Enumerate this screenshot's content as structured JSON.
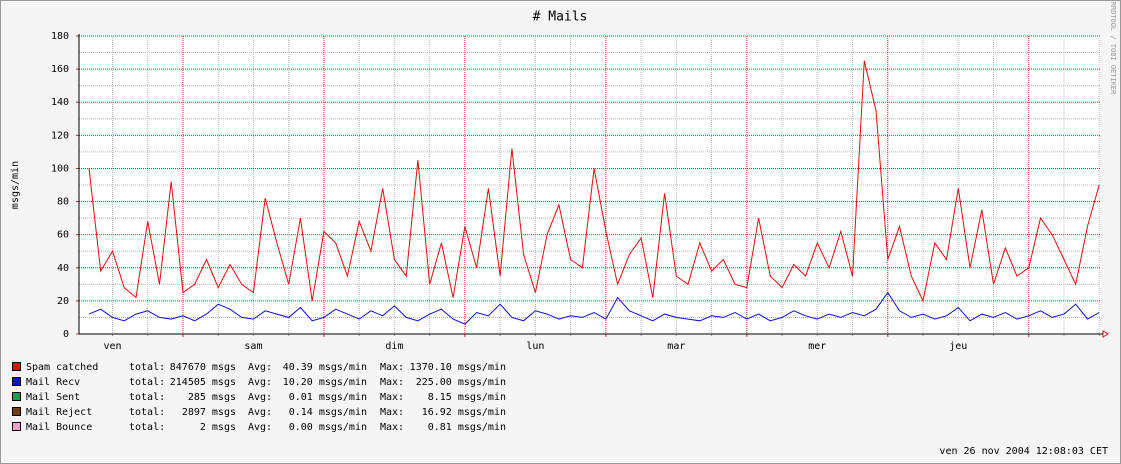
{
  "chart_data": {
    "type": "line",
    "title": "# Mails",
    "y_label": "msgs/min",
    "watermark": "RRDTOOL / TOBI OETIKER",
    "timestamp": "ven 26 nov 2004 12:08:03 CET",
    "xlim": [
      6.3,
      180.3
    ],
    "ylim": [
      0,
      180
    ],
    "yticks": [
      0,
      20,
      40,
      60,
      80,
      100,
      120,
      140,
      160,
      180
    ],
    "xticks": [
      {
        "value": 12,
        "label": "ven"
      },
      {
        "value": 36,
        "label": "sam"
      },
      {
        "value": 60,
        "label": "dim"
      },
      {
        "value": 84,
        "label": "lun"
      },
      {
        "value": 108,
        "label": "mar"
      },
      {
        "value": 132,
        "label": "mer"
      },
      {
        "value": 156,
        "label": "jeu"
      }
    ],
    "grid": true,
    "legend_labels": {
      "total": "total:",
      "avg": "Avg:",
      "max": "Max:"
    },
    "x": [
      8,
      10,
      12,
      14,
      16,
      18,
      20,
      22,
      24,
      26,
      28,
      30,
      32,
      34,
      36,
      38,
      40,
      42,
      44,
      46,
      48,
      50,
      52,
      54,
      56,
      58,
      60,
      62,
      64,
      66,
      68,
      70,
      72,
      74,
      76,
      78,
      80,
      82,
      84,
      86,
      88,
      90,
      92,
      94,
      96,
      98,
      100,
      102,
      104,
      106,
      108,
      110,
      112,
      114,
      116,
      118,
      120,
      122,
      124,
      126,
      128,
      130,
      132,
      134,
      136,
      138,
      140,
      142,
      144,
      146,
      148,
      150,
      152,
      154,
      156,
      158,
      160,
      162,
      164,
      166,
      168,
      170,
      172,
      174,
      176,
      178,
      180
    ],
    "series": [
      {
        "name": "Spam catched",
        "color": "#e01010",
        "total": "847670 msgs",
        "avg": "40.39 msgs/min",
        "max": "1370.10 msgs/min",
        "values": [
          100,
          38,
          50,
          28,
          22,
          68,
          30,
          92,
          25,
          30,
          45,
          28,
          42,
          30,
          25,
          82,
          55,
          30,
          70,
          20,
          62,
          55,
          35,
          68,
          50,
          88,
          45,
          35,
          105,
          30,
          55,
          22,
          65,
          40,
          88,
          35,
          112,
          48,
          25,
          60,
          78,
          45,
          40,
          100,
          62,
          30,
          48,
          58,
          22,
          85,
          35,
          30,
          55,
          38,
          45,
          30,
          28,
          70,
          35,
          28,
          42,
          35,
          55,
          40,
          62,
          35,
          165,
          135,
          45,
          65,
          35,
          20,
          55,
          45,
          88,
          40,
          75,
          30,
          52,
          35,
          40,
          70,
          60,
          45,
          30,
          65,
          90
        ]
      },
      {
        "name": "Mail Recv",
        "color": "#1010d0",
        "total": "214505 msgs",
        "avg": "10.20 msgs/min",
        "max": "225.00 msgs/min",
        "values": [
          12,
          15,
          10,
          8,
          12,
          14,
          10,
          9,
          11,
          8,
          12,
          18,
          15,
          10,
          9,
          14,
          12,
          10,
          16,
          8,
          10,
          15,
          12,
          9,
          14,
          11,
          17,
          10,
          8,
          12,
          15,
          9,
          6,
          13,
          11,
          18,
          10,
          8,
          14,
          12,
          9,
          11,
          10,
          13,
          9,
          22,
          14,
          11,
          8,
          12,
          10,
          9,
          8,
          11,
          10,
          13,
          9,
          12,
          8,
          10,
          14,
          11,
          9,
          12,
          10,
          13,
          11,
          15,
          25,
          14,
          10,
          12,
          9,
          11,
          16,
          8,
          12,
          10,
          13,
          9,
          11,
          14,
          10,
          12,
          18,
          9,
          13
        ]
      },
      {
        "name": "Mail Sent",
        "color": "#10a050",
        "total": "285 msgs",
        "avg": "0.01 msgs/min",
        "max": "8.15 msgs/min",
        "values": [
          0,
          0,
          0,
          0,
          0,
          0,
          0,
          0,
          0,
          0,
          0,
          0,
          0,
          0,
          0,
          0,
          0,
          0,
          0,
          0,
          0,
          0,
          0,
          0,
          0,
          0,
          0,
          0,
          0,
          0,
          0,
          0,
          0,
          0,
          0,
          0,
          0,
          0,
          0,
          0,
          0,
          0,
          0,
          0,
          0,
          0,
          0,
          0,
          0,
          0,
          0,
          0,
          0,
          0,
          0,
          0,
          0,
          0,
          0,
          0,
          0,
          0,
          0,
          0,
          0,
          0,
          0,
          0,
          0,
          0,
          0,
          0,
          0,
          0,
          0,
          0,
          0,
          0,
          0,
          0,
          0,
          0,
          0,
          0,
          0,
          0,
          0
        ]
      },
      {
        "name": "Mail Reject",
        "color": "#704010",
        "total": "2897 msgs",
        "avg": "0.14 msgs/min",
        "max": "16.92 msgs/min",
        "values": [
          0,
          0,
          0,
          0,
          0,
          0,
          0,
          0,
          0,
          0,
          0,
          0,
          0,
          0,
          0,
          0,
          0,
          0,
          0,
          0,
          0,
          0,
          0,
          0,
          0,
          0,
          0,
          0,
          0,
          0,
          0,
          0,
          0,
          0,
          0,
          0,
          0,
          0,
          0,
          0,
          0,
          0,
          0,
          0,
          0,
          0,
          0,
          0,
          0,
          0,
          0,
          0,
          0,
          0,
          0,
          0,
          0,
          0,
          0,
          0,
          0,
          0,
          0,
          0,
          0,
          0,
          0,
          0,
          0,
          0,
          0,
          0,
          0,
          0,
          0,
          0,
          0,
          0,
          0,
          0,
          0,
          0,
          0,
          0,
          0,
          0,
          0
        ]
      },
      {
        "name": "Mail Bounce",
        "color": "#f0a0d0",
        "total": "2 msgs",
        "avg": "0.00 msgs/min",
        "max": "0.81 msgs/min",
        "values": [
          0,
          0,
          0,
          0,
          0,
          0,
          0,
          0,
          0,
          0,
          0,
          0,
          0,
          0,
          0,
          0,
          0,
          0,
          0,
          0,
          0,
          0,
          0,
          0,
          0,
          0,
          0,
          0,
          0,
          0,
          0,
          0,
          0,
          0,
          0,
          0,
          0,
          0,
          0,
          0,
          0,
          0,
          0,
          0,
          0,
          0,
          0,
          0,
          0,
          0,
          0,
          0,
          0,
          0,
          0,
          0,
          0,
          0,
          0,
          0,
          0,
          0,
          0,
          0,
          0,
          0,
          0,
          0,
          0,
          0,
          0,
          0,
          0,
          0,
          0,
          0,
          0,
          0,
          0,
          0,
          0,
          0,
          0,
          0,
          0,
          0,
          0
        ]
      }
    ]
  }
}
